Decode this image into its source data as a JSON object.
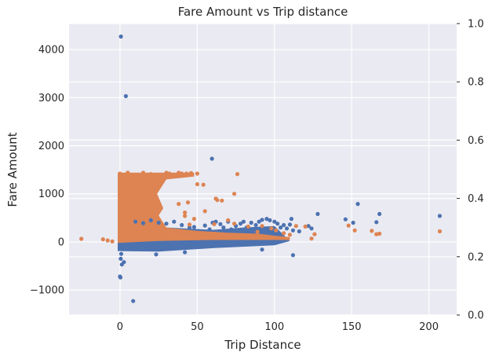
{
  "chart_data": {
    "type": "scatter",
    "title": "Fare Amount vs Trip distance",
    "xlabel": "Trip Distance",
    "ylabel": "Fare Amount",
    "xlim": [
      -33,
      218
    ],
    "ylim": [
      -1520,
      4540
    ],
    "y2lim": [
      0.0,
      1.0
    ],
    "x_ticks": [
      0,
      50,
      100,
      150,
      200
    ],
    "y_ticks": [
      -1000,
      0,
      1000,
      2000,
      3000,
      4000
    ],
    "y2_ticks": [
      "0.0",
      "0.2",
      "0.4",
      "0.6",
      "0.8",
      "1.0"
    ],
    "grid": true,
    "background": "#eaeaf2",
    "series": [
      {
        "color": "#4c72b0",
        "points": [
          [
            0.6,
            4270
          ],
          [
            3.8,
            3030
          ],
          [
            8.5,
            -1230
          ],
          [
            59.5,
            1730
          ],
          [
            0,
            -720
          ],
          [
            0.3,
            -740
          ],
          [
            1.2,
            -470
          ],
          [
            2.5,
            -420
          ],
          [
            0.5,
            -350
          ],
          [
            0.8,
            -250
          ],
          [
            23.4,
            -260
          ],
          [
            112,
            -275
          ],
          [
            42,
            -215
          ],
          [
            92,
            -160
          ],
          [
            0,
            -110
          ],
          [
            4,
            -90
          ],
          [
            10,
            -80
          ],
          [
            20,
            -90
          ],
          [
            30,
            -70
          ],
          [
            40,
            -60
          ],
          [
            50,
            -70
          ],
          [
            60,
            -65
          ],
          [
            70,
            -40
          ],
          [
            80,
            -30
          ],
          [
            10,
            420
          ],
          [
            15,
            390
          ],
          [
            20,
            450
          ],
          [
            25,
            400
          ],
          [
            30,
            380
          ],
          [
            35,
            420
          ],
          [
            40,
            350
          ],
          [
            45,
            300
          ],
          [
            48,
            310
          ],
          [
            55,
            340
          ],
          [
            58,
            260
          ],
          [
            60,
            400
          ],
          [
            62,
            420
          ],
          [
            65,
            370
          ],
          [
            67,
            300
          ],
          [
            70,
            420
          ],
          [
            72,
            260
          ],
          [
            75,
            330
          ],
          [
            78,
            380
          ],
          [
            80,
            420
          ],
          [
            82,
            300
          ],
          [
            85,
            400
          ],
          [
            88,
            350
          ],
          [
            90,
            420
          ],
          [
            92,
            460
          ],
          [
            95,
            480
          ],
          [
            97,
            450
          ],
          [
            100,
            420
          ],
          [
            102,
            380
          ],
          [
            104,
            300
          ],
          [
            106,
            350
          ],
          [
            108,
            280
          ],
          [
            110,
            360
          ],
          [
            111,
            480
          ],
          [
            112,
            240
          ],
          [
            116,
            220
          ],
          [
            122,
            330
          ],
          [
            124,
            280
          ],
          [
            128,
            580
          ],
          [
            146,
            470
          ],
          [
            151,
            400
          ],
          [
            154,
            790
          ],
          [
            166,
            410
          ],
          [
            168,
            580
          ],
          [
            207,
            540
          ]
        ]
      },
      {
        "color": "#dd8452",
        "points": [
          [
            -25,
            65
          ],
          [
            -11,
            55
          ],
          [
            -8,
            30
          ],
          [
            -5,
            10
          ],
          [
            0,
            1420
          ],
          [
            5,
            1440
          ],
          [
            10,
            1380
          ],
          [
            15,
            1440
          ],
          [
            20,
            1410
          ],
          [
            25,
            1400
          ],
          [
            28,
            1330
          ],
          [
            30,
            1440
          ],
          [
            32,
            1420
          ],
          [
            35,
            1380
          ],
          [
            38,
            1440
          ],
          [
            40,
            1420
          ],
          [
            43,
            1420
          ],
          [
            46,
            1430
          ],
          [
            50,
            1420
          ],
          [
            76,
            1410
          ],
          [
            50,
            1200
          ],
          [
            54,
            1190
          ],
          [
            62,
            900
          ],
          [
            63,
            870
          ],
          [
            66,
            860
          ],
          [
            74,
            1000
          ],
          [
            44,
            820
          ],
          [
            38,
            790
          ],
          [
            42,
            610
          ],
          [
            42,
            540
          ],
          [
            48,
            480
          ],
          [
            45,
            360
          ],
          [
            55,
            640
          ],
          [
            61,
            370
          ],
          [
            70,
            450
          ],
          [
            74,
            380
          ],
          [
            62,
            170
          ],
          [
            83,
            320
          ],
          [
            89,
            210
          ],
          [
            92,
            330
          ],
          [
            98,
            280
          ],
          [
            101,
            240
          ],
          [
            106,
            180
          ],
          [
            110,
            150
          ],
          [
            114,
            330
          ],
          [
            120,
            320
          ],
          [
            124,
            70
          ],
          [
            126,
            160
          ],
          [
            148,
            340
          ],
          [
            152,
            240
          ],
          [
            163,
            230
          ],
          [
            166,
            160
          ],
          [
            168,
            170
          ],
          [
            207,
            220
          ]
        ]
      }
    ]
  }
}
